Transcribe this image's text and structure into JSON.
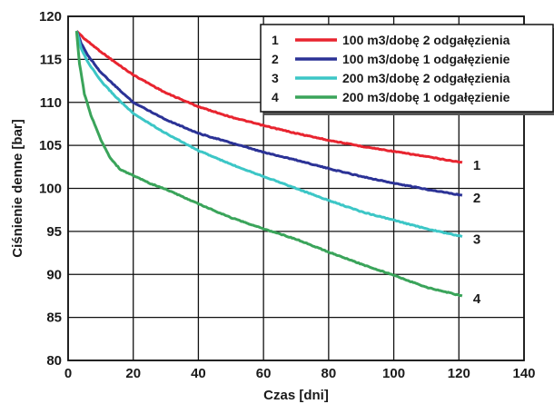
{
  "chart_data": {
    "type": "line",
    "title": "",
    "xlabel": "Czas [dni]",
    "ylabel": "Ciśnienie denne [bar]",
    "xlim": [
      0,
      140
    ],
    "ylim": [
      80,
      120
    ],
    "xticks": [
      0,
      20,
      40,
      60,
      80,
      100,
      120,
      140
    ],
    "yticks": [
      80,
      85,
      90,
      95,
      100,
      105,
      110,
      115,
      120
    ],
    "grid": true,
    "legend_position": "top-right",
    "series": [
      {
        "id": "1",
        "name": "100 m3/dobę 2 odgałęzienia",
        "color": "#e8242f",
        "x": [
          2.6,
          5,
          10,
          15,
          20,
          30,
          40,
          50,
          60,
          70,
          80,
          90,
          100,
          110,
          121
        ],
        "y": [
          118.3,
          117.4,
          115.9,
          114.5,
          113.2,
          111.1,
          109.5,
          108.3,
          107.3,
          106.4,
          105.6,
          104.9,
          104.3,
          103.7,
          103.0
        ]
      },
      {
        "id": "2",
        "name": "100 m3/dobę 1 odgałęzienie",
        "color": "#2b3296",
        "x": [
          2.6,
          4,
          6,
          10,
          15,
          20,
          30,
          40,
          50,
          60,
          70,
          80,
          90,
          100,
          110,
          121
        ],
        "y": [
          118.3,
          116.9,
          115.5,
          113.5,
          111.7,
          110.0,
          108.0,
          106.4,
          105.3,
          104.2,
          103.3,
          102.3,
          101.4,
          100.6,
          99.9,
          99.2
        ]
      },
      {
        "id": "3",
        "name": "200 m3/dobę 2 odgałęzienia",
        "color": "#3cc6c6",
        "x": [
          2.6,
          4,
          6,
          10,
          15,
          20,
          30,
          40,
          50,
          60,
          70,
          80,
          90,
          100,
          110,
          121
        ],
        "y": [
          118.3,
          116.3,
          114.7,
          112.5,
          110.5,
          108.7,
          106.4,
          104.4,
          102.8,
          101.4,
          100.0,
          98.6,
          97.3,
          96.3,
          95.3,
          94.4
        ]
      },
      {
        "id": "4",
        "name": "200 m3/dobę 1 odgałęzienie",
        "color": "#3aa45a",
        "x": [
          2.6,
          3.5,
          5,
          7,
          10,
          13,
          16,
          20,
          25,
          30,
          40,
          50,
          60,
          70,
          80,
          90,
          100,
          110,
          121
        ],
        "y": [
          118.3,
          114.5,
          111.0,
          108.5,
          105.7,
          103.5,
          102.2,
          101.5,
          100.6,
          99.9,
          98.2,
          96.6,
          95.3,
          94.1,
          92.6,
          91.2,
          89.9,
          88.5,
          87.5
        ]
      }
    ]
  }
}
